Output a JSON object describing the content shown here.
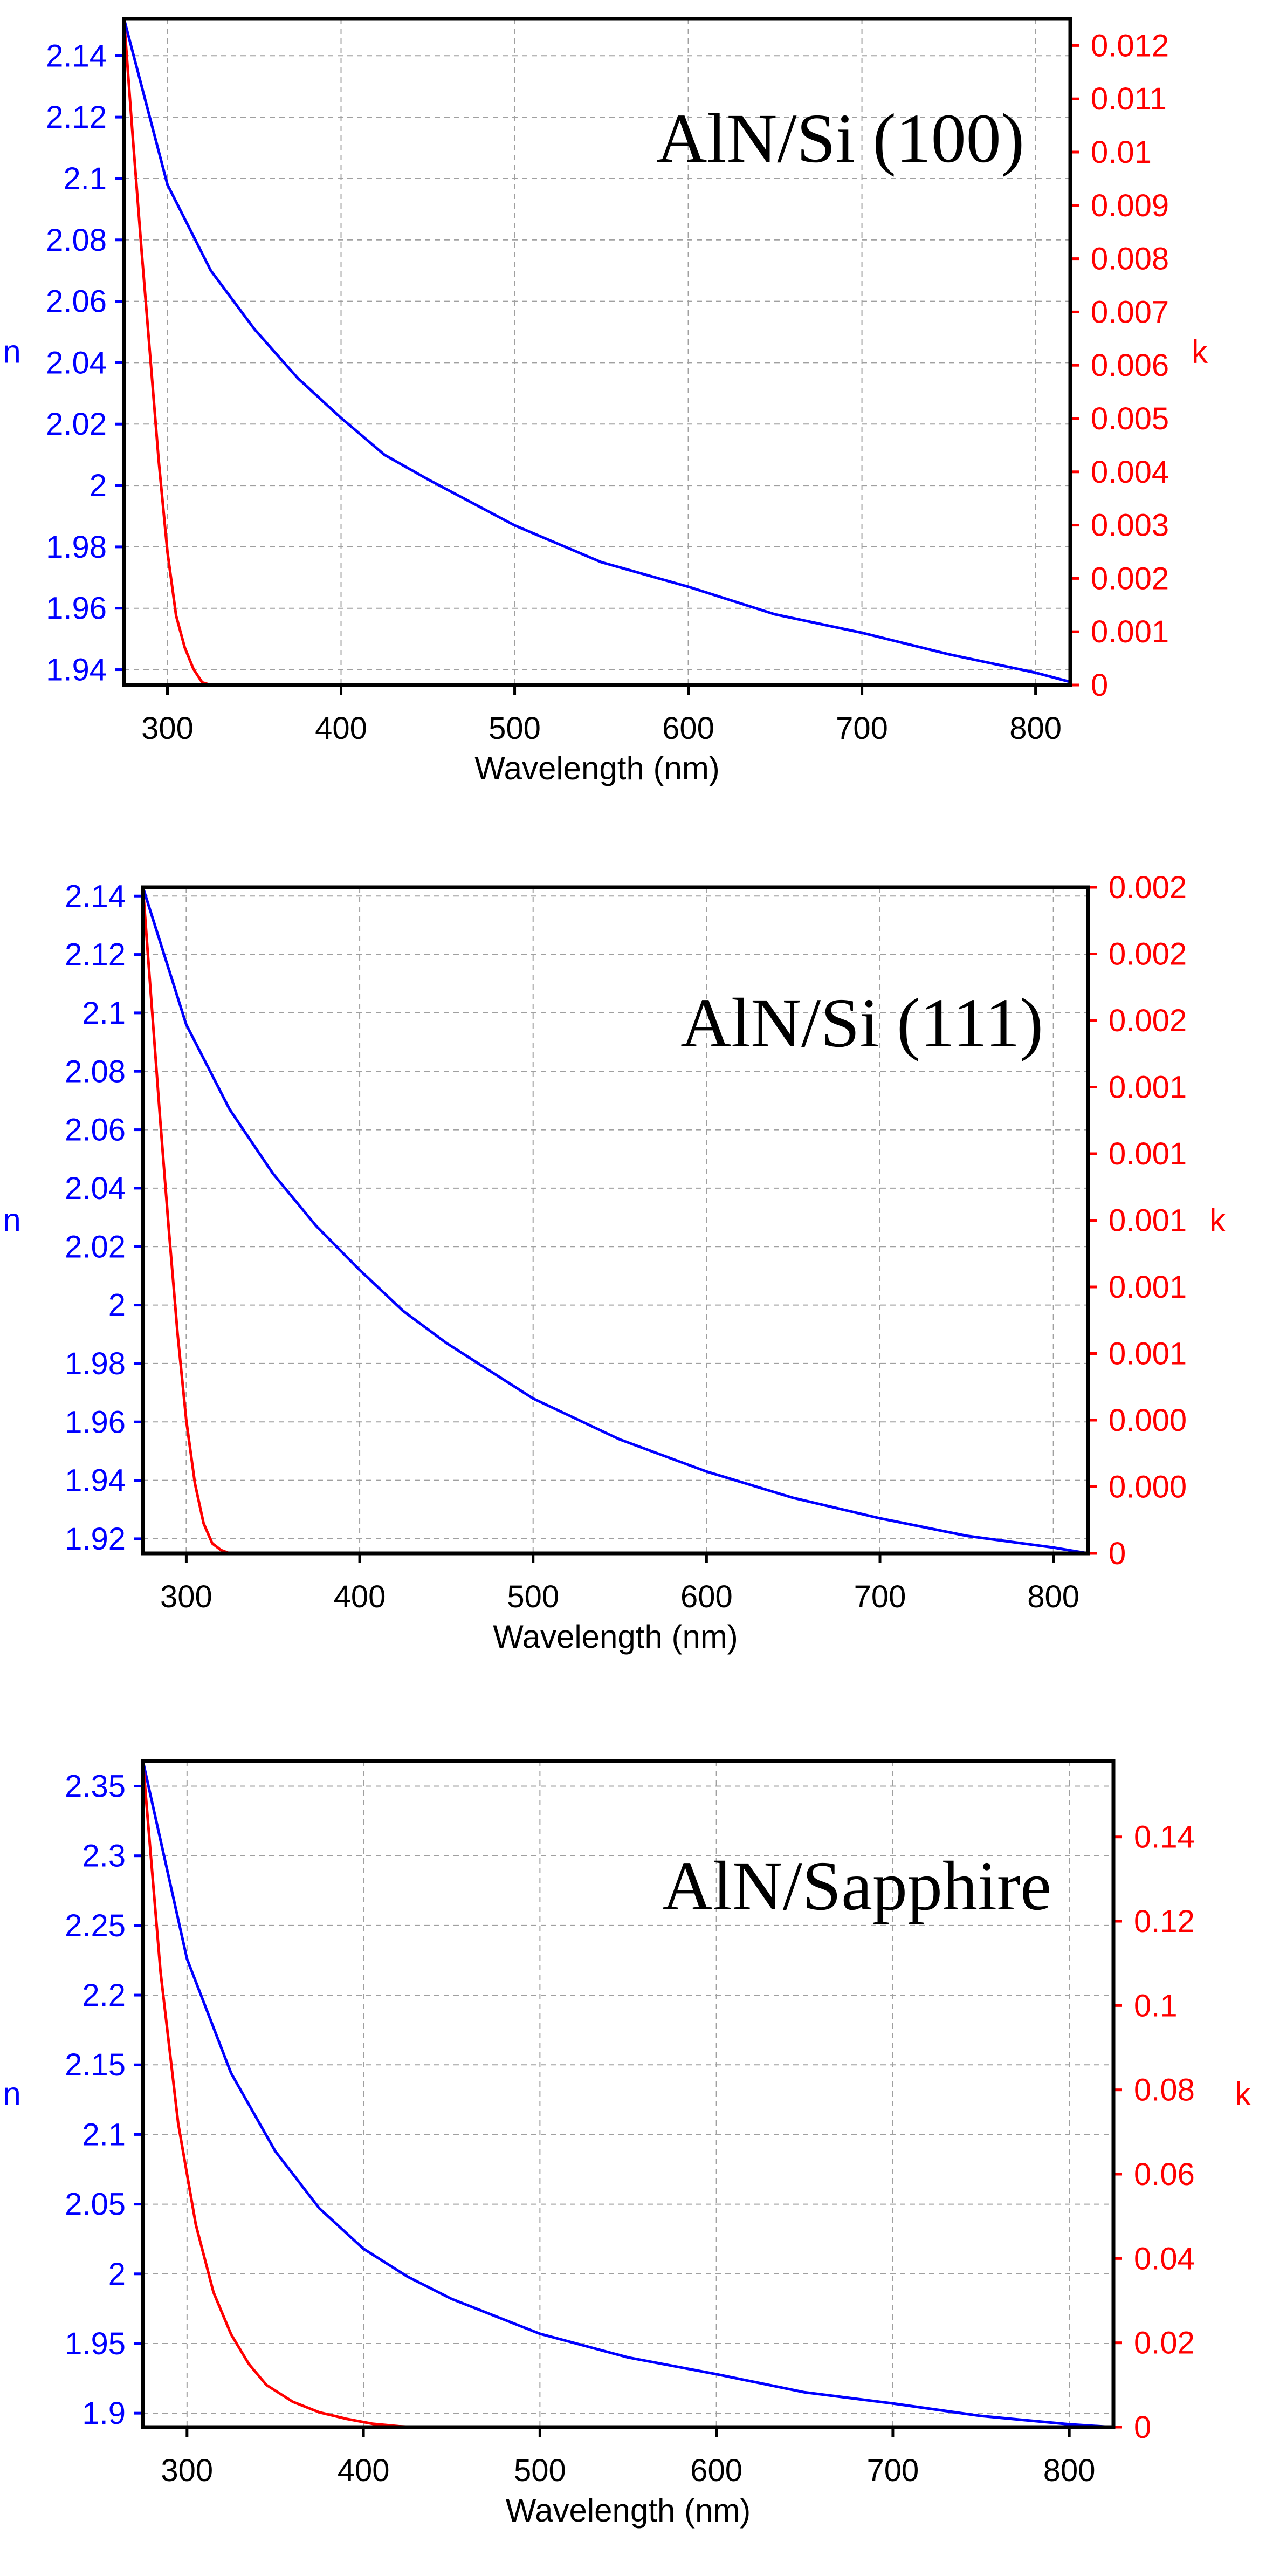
{
  "colors": {
    "n_series": "#0000ff",
    "k_series": "#ff0000",
    "axis": "#000000",
    "grid": "#a0a0a0"
  },
  "chart_data": [
    {
      "type": "line",
      "title": "AlN/Si (100)",
      "xlabel": "Wavelength (nm)",
      "ylabel": "n",
      "y2label": "k",
      "xlim": [
        275,
        820
      ],
      "ylim": [
        1.935,
        2.152
      ],
      "y2lim": [
        0,
        0.0125
      ],
      "xticks": [
        300,
        400,
        500,
        600,
        700,
        800
      ],
      "xtick_labels": [
        "300",
        "400",
        "500",
        "600",
        "700",
        "800"
      ],
      "yticks": [
        1.94,
        1.96,
        1.98,
        2,
        2.02,
        2.04,
        2.06,
        2.08,
        2.1,
        2.12,
        2.14
      ],
      "ytick_labels": [
        "1.94",
        "1.96",
        "1.98",
        "2",
        "2.02",
        "2.04",
        "2.06",
        "2.08",
        "2.1",
        "2.12",
        "2.14"
      ],
      "y2ticks": [
        0,
        0.001,
        0.002,
        0.003,
        0.004,
        0.005,
        0.006,
        0.007,
        0.008,
        0.009,
        0.01,
        0.011,
        0.012
      ],
      "y2tick_labels": [
        "0",
        "0.001",
        "0.002",
        "0.003",
        "0.004",
        "0.005",
        "0.006",
        "0.007",
        "0.008",
        "0.009",
        "0.01",
        "0.011",
        "0.012"
      ],
      "grid": true,
      "series": [
        {
          "name": "n",
          "axis": "left",
          "color": "#0000ff",
          "x": [
            275,
            300,
            325,
            350,
            375,
            400,
            425,
            450,
            500,
            550,
            600,
            650,
            700,
            750,
            800,
            820
          ],
          "y": [
            2.152,
            2.098,
            2.07,
            2.051,
            2.035,
            2.022,
            2.01,
            2.002,
            1.987,
            1.975,
            1.967,
            1.958,
            1.952,
            1.945,
            1.939,
            1.936
          ]
        },
        {
          "name": "k",
          "axis": "right",
          "color": "#ff0000",
          "x": [
            275,
            280,
            285,
            290,
            295,
            300,
            305,
            310,
            315,
            320,
            325
          ],
          "y": [
            0.0125,
            0.0103,
            0.0082,
            0.0062,
            0.0042,
            0.0025,
            0.0013,
            0.0007,
            0.0003,
            5e-05,
            0
          ]
        }
      ]
    },
    {
      "type": "line",
      "title": "AlN/Si (111)",
      "xlabel": "Wavelength (nm)",
      "ylabel": "n",
      "y2label": "k",
      "xlim": [
        275,
        820
      ],
      "ylim": [
        1.915,
        2.143
      ],
      "y2lim": [
        0,
        0.002
      ],
      "xticks": [
        300,
        400,
        500,
        600,
        700,
        800
      ],
      "xtick_labels": [
        "300",
        "400",
        "500",
        "600",
        "700",
        "800"
      ],
      "yticks": [
        1.92,
        1.94,
        1.96,
        1.98,
        2,
        2.02,
        2.04,
        2.06,
        2.08,
        2.1,
        2.12,
        2.14
      ],
      "ytick_labels": [
        "1.92",
        "1.94",
        "1.96",
        "1.98",
        "2",
        "2.02",
        "2.04",
        "2.06",
        "2.08",
        "2.1",
        "2.12",
        "2.14"
      ],
      "y2ticks": [
        0,
        0.0002,
        0.0004,
        0.0006,
        0.0008,
        0.001,
        0.0012,
        0.0014,
        0.0016,
        0.0018,
        0.002
      ],
      "y2tick_labels": [
        "0",
        "0.000",
        "0.000",
        "0.001",
        "0.001",
        "0.001",
        "0.001",
        "0.001",
        "0.002",
        "0.002",
        "0.002"
      ],
      "grid": true,
      "series": [
        {
          "name": "n",
          "axis": "left",
          "color": "#0000ff",
          "x": [
            275,
            300,
            325,
            350,
            375,
            400,
            425,
            450,
            500,
            550,
            600,
            650,
            700,
            750,
            800,
            820
          ],
          "y": [
            2.143,
            2.096,
            2.067,
            2.045,
            2.027,
            2.012,
            1.998,
            1.987,
            1.968,
            1.954,
            1.943,
            1.934,
            1.927,
            1.921,
            1.917,
            1.915
          ]
        },
        {
          "name": "k",
          "axis": "right",
          "color": "#ff0000",
          "x": [
            275,
            280,
            285,
            290,
            295,
            300,
            305,
            310,
            315,
            320,
            325
          ],
          "y": [
            0.002,
            0.00165,
            0.0013,
            0.00097,
            0.00066,
            0.0004,
            0.00021,
            9e-05,
            3e-05,
            1e-05,
            0
          ]
        }
      ]
    },
    {
      "type": "line",
      "title": "AlN/Sapphire",
      "xlabel": "Wavelength (nm)",
      "ylabel": "n",
      "y2label": "k",
      "xlim": [
        275,
        825
      ],
      "ylim": [
        1.89,
        2.368
      ],
      "y2lim": [
        0,
        0.158
      ],
      "xticks": [
        300,
        400,
        500,
        600,
        700,
        800
      ],
      "xtick_labels": [
        "300",
        "400",
        "500",
        "600",
        "700",
        "800"
      ],
      "yticks": [
        1.9,
        1.95,
        2,
        2.05,
        2.1,
        2.15,
        2.2,
        2.25,
        2.3,
        2.35
      ],
      "ytick_labels": [
        "1.9",
        "1.95",
        "2",
        "2.05",
        "2.1",
        "2.15",
        "2.2",
        "2.25",
        "2.3",
        "2.35"
      ],
      "y2ticks": [
        0,
        0.02,
        0.04,
        0.06,
        0.08,
        0.1,
        0.12,
        0.14
      ],
      "y2tick_labels": [
        "0",
        "0.02",
        "0.04",
        "0.06",
        "0.08",
        "0.1",
        "0.12",
        "0.14"
      ],
      "grid": true,
      "series": [
        {
          "name": "n",
          "axis": "left",
          "color": "#0000ff",
          "x": [
            275,
            300,
            325,
            350,
            375,
            400,
            425,
            450,
            500,
            550,
            600,
            650,
            700,
            750,
            800,
            825
          ],
          "y": [
            2.368,
            2.226,
            2.144,
            2.088,
            2.047,
            2.018,
            1.998,
            1.982,
            1.957,
            1.94,
            1.928,
            1.915,
            1.907,
            1.898,
            1.892,
            1.89
          ]
        },
        {
          "name": "k",
          "axis": "right",
          "color": "#ff0000",
          "x": [
            275,
            285,
            295,
            305,
            315,
            325,
            335,
            345,
            360,
            375,
            390,
            405,
            420,
            430
          ],
          "y": [
            0.158,
            0.108,
            0.072,
            0.048,
            0.032,
            0.022,
            0.015,
            0.01,
            0.006,
            0.0035,
            0.002,
            0.0008,
            0.0002,
            0
          ]
        }
      ]
    }
  ]
}
